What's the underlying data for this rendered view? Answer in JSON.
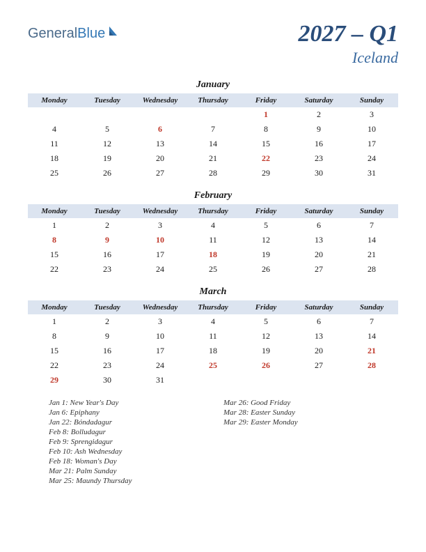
{
  "logo": {
    "part1": "General",
    "part2": "Blue"
  },
  "title": {
    "yearQuarter": "2027 – Q1",
    "country": "Iceland"
  },
  "dayHeaders": [
    "Monday",
    "Tuesday",
    "Wednesday",
    "Thursday",
    "Friday",
    "Saturday",
    "Sunday"
  ],
  "colors": {
    "headerBg": "#dce4f0",
    "holidayText": "#c0392b",
    "titleText": "#2a4d7a",
    "countryText": "#3a6aa0",
    "logoGeneral": "#4a6a8a",
    "logoBlue": "#3478b5"
  },
  "months": [
    {
      "name": "January",
      "weeks": [
        [
          null,
          null,
          null,
          null,
          {
            "d": 1,
            "h": true
          },
          {
            "d": 2
          },
          {
            "d": 3
          }
        ],
        [
          {
            "d": 4
          },
          {
            "d": 5
          },
          {
            "d": 6,
            "h": true
          },
          {
            "d": 7
          },
          {
            "d": 8
          },
          {
            "d": 9
          },
          {
            "d": 10
          }
        ],
        [
          {
            "d": 11
          },
          {
            "d": 12
          },
          {
            "d": 13
          },
          {
            "d": 14
          },
          {
            "d": 15
          },
          {
            "d": 16
          },
          {
            "d": 17
          }
        ],
        [
          {
            "d": 18
          },
          {
            "d": 19
          },
          {
            "d": 20
          },
          {
            "d": 21
          },
          {
            "d": 22,
            "h": true
          },
          {
            "d": 23
          },
          {
            "d": 24
          }
        ],
        [
          {
            "d": 25
          },
          {
            "d": 26
          },
          {
            "d": 27
          },
          {
            "d": 28
          },
          {
            "d": 29
          },
          {
            "d": 30
          },
          {
            "d": 31
          }
        ]
      ]
    },
    {
      "name": "February",
      "weeks": [
        [
          {
            "d": 1
          },
          {
            "d": 2
          },
          {
            "d": 3
          },
          {
            "d": 4
          },
          {
            "d": 5
          },
          {
            "d": 6
          },
          {
            "d": 7
          }
        ],
        [
          {
            "d": 8,
            "h": true
          },
          {
            "d": 9,
            "h": true
          },
          {
            "d": 10,
            "h": true
          },
          {
            "d": 11
          },
          {
            "d": 12
          },
          {
            "d": 13
          },
          {
            "d": 14
          }
        ],
        [
          {
            "d": 15
          },
          {
            "d": 16
          },
          {
            "d": 17
          },
          {
            "d": 18,
            "h": true
          },
          {
            "d": 19
          },
          {
            "d": 20
          },
          {
            "d": 21
          }
        ],
        [
          {
            "d": 22
          },
          {
            "d": 23
          },
          {
            "d": 24
          },
          {
            "d": 25
          },
          {
            "d": 26
          },
          {
            "d": 27
          },
          {
            "d": 28
          }
        ]
      ]
    },
    {
      "name": "March",
      "weeks": [
        [
          {
            "d": 1
          },
          {
            "d": 2
          },
          {
            "d": 3
          },
          {
            "d": 4
          },
          {
            "d": 5
          },
          {
            "d": 6
          },
          {
            "d": 7
          }
        ],
        [
          {
            "d": 8
          },
          {
            "d": 9
          },
          {
            "d": 10
          },
          {
            "d": 11
          },
          {
            "d": 12
          },
          {
            "d": 13
          },
          {
            "d": 14
          }
        ],
        [
          {
            "d": 15
          },
          {
            "d": 16
          },
          {
            "d": 17
          },
          {
            "d": 18
          },
          {
            "d": 19
          },
          {
            "d": 20
          },
          {
            "d": 21,
            "h": true
          }
        ],
        [
          {
            "d": 22
          },
          {
            "d": 23
          },
          {
            "d": 24
          },
          {
            "d": 25,
            "h": true
          },
          {
            "d": 26,
            "h": true
          },
          {
            "d": 27
          },
          {
            "d": 28,
            "h": true
          }
        ],
        [
          {
            "d": 29,
            "h": true
          },
          {
            "d": 30
          },
          {
            "d": 31
          },
          null,
          null,
          null,
          null
        ]
      ]
    }
  ],
  "holidayList": {
    "col1": [
      "Jan 1: New Year's Day",
      "Jan 6: Epiphany",
      "Jan 22: Bóndadagur",
      "Feb 8: Bolludagur",
      "Feb 9: Sprengidagur",
      "Feb 10: Ash Wednesday",
      "Feb 18: Woman's Day",
      "Mar 21: Palm Sunday",
      "Mar 25: Maundy Thursday"
    ],
    "col2": [
      "Mar 26: Good Friday",
      "Mar 28: Easter Sunday",
      "Mar 29: Easter Monday"
    ]
  }
}
